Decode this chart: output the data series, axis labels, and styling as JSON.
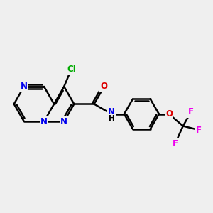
{
  "background_color": "#efefef",
  "bond_color": "#000000",
  "bond_width": 1.8,
  "atom_colors": {
    "N": "#0000ee",
    "O": "#dd0000",
    "Cl": "#00aa00",
    "F": "#ee00ee",
    "H": "#000000"
  },
  "font_size": 8.5,
  "figsize": [
    3.0,
    3.0
  ],
  "dpi": 100
}
